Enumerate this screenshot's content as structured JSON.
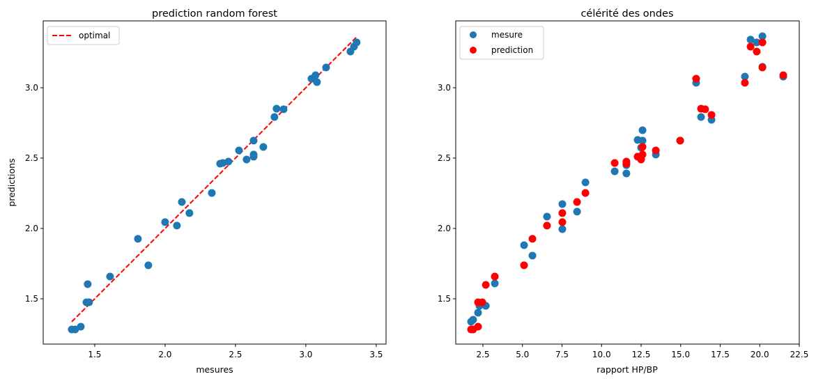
{
  "chart_data": [
    {
      "type": "scatter",
      "title": "prediction random forest",
      "xlabel": "mesures",
      "ylabel": "predictions",
      "xlim": [
        1.134,
        3.57
      ],
      "ylim": [
        1.178,
        3.475
      ],
      "xticks": [
        "1.5",
        "2.0",
        "2.5",
        "3.0",
        "3.5"
      ],
      "yticks": [
        "1.5",
        "2.0",
        "2.5",
        "3.0"
      ],
      "grid": false,
      "legend": "top-left",
      "series": [
        {
          "name": "optimal",
          "kind": "line",
          "style": "dashed",
          "color": "#ff0000",
          "x": [
            1.337,
            3.361
          ],
          "y": [
            1.337,
            3.361
          ]
        },
        {
          "kind": "scatter",
          "color": "#1f77b4",
          "x": [
            1.337,
            1.361,
            1.401,
            1.45,
            1.441,
            1.46,
            1.609,
            1.807,
            1.881,
            2.0,
            2.084,
            2.119,
            2.173,
            2.332,
            2.391,
            2.411,
            2.45,
            2.525,
            2.579,
            2.629,
            2.629,
            2.629,
            2.698,
            2.777,
            2.792,
            2.842,
            3.04,
            3.069,
            3.079,
            3.144,
            3.317,
            3.342,
            3.361
          ],
          "y": [
            1.282,
            1.282,
            1.302,
            1.604,
            1.475,
            1.475,
            1.658,
            1.926,
            1.738,
            2.045,
            2.02,
            2.188,
            2.109,
            2.252,
            2.46,
            2.465,
            2.475,
            2.554,
            2.49,
            2.525,
            2.51,
            2.624,
            2.579,
            2.792,
            2.851,
            2.847,
            3.064,
            3.089,
            3.04,
            3.144,
            3.257,
            3.292,
            3.322
          ]
        }
      ]
    },
    {
      "type": "scatter",
      "title": "célérité des ondes",
      "xlabel": "rapport HP/BP",
      "ylabel": "",
      "xlim": [
        0.78,
        22.5
      ],
      "ylim": [
        1.178,
        3.475
      ],
      "xticks": [
        "2.5",
        "5.0",
        "7.5",
        "10.0",
        "12.5",
        "15.0",
        "17.5",
        "20.0",
        "22.5"
      ],
      "yticks": [
        "1.5",
        "2.0",
        "2.5",
        "3.0"
      ],
      "grid": false,
      "legend": "top-left",
      "series": [
        {
          "name": "mesure",
          "color": "#1f77b4",
          "x": [
            1.75,
            1.88,
            2.19,
            2.28,
            2.68,
            3.25,
            5.1,
            5.63,
            6.55,
            7.52,
            7.52,
            8.45,
            8.98,
            10.83,
            11.57,
            11.57,
            12.28,
            12.5,
            12.59,
            12.59,
            13.43,
            14.97,
            15.98,
            16.29,
            16.95,
            19.06,
            19.42,
            19.81,
            20.17,
            20.17,
            21.49
          ],
          "y": [
            1.337,
            1.351,
            1.401,
            1.45,
            1.45,
            1.609,
            1.881,
            1.807,
            2.084,
            2.173,
            1.995,
            2.119,
            2.327,
            2.406,
            2.391,
            2.45,
            2.629,
            2.574,
            2.698,
            2.624,
            2.525,
            2.624,
            3.035,
            2.792,
            2.772,
            3.079,
            3.342,
            3.322,
            3.366,
            3.149,
            3.079
          ]
        },
        {
          "name": "prediction",
          "color": "#ff0000",
          "x": [
            1.75,
            1.88,
            2.19,
            2.19,
            2.46,
            2.68,
            3.25,
            5.1,
            5.63,
            6.55,
            7.52,
            7.52,
            8.45,
            8.98,
            10.83,
            11.57,
            11.57,
            12.28,
            12.5,
            12.59,
            12.59,
            13.43,
            14.97,
            15.98,
            16.29,
            16.55,
            16.95,
            19.06,
            19.42,
            19.81,
            20.17,
            20.17,
            21.49
          ],
          "y": [
            1.282,
            1.282,
            1.302,
            1.475,
            1.475,
            1.599,
            1.658,
            1.738,
            1.926,
            2.02,
            2.109,
            2.045,
            2.188,
            2.252,
            2.465,
            2.475,
            2.46,
            2.51,
            2.49,
            2.579,
            2.525,
            2.554,
            2.624,
            3.064,
            2.851,
            2.847,
            2.807,
            3.035,
            3.292,
            3.257,
            3.322,
            3.144,
            3.089
          ]
        }
      ]
    }
  ]
}
